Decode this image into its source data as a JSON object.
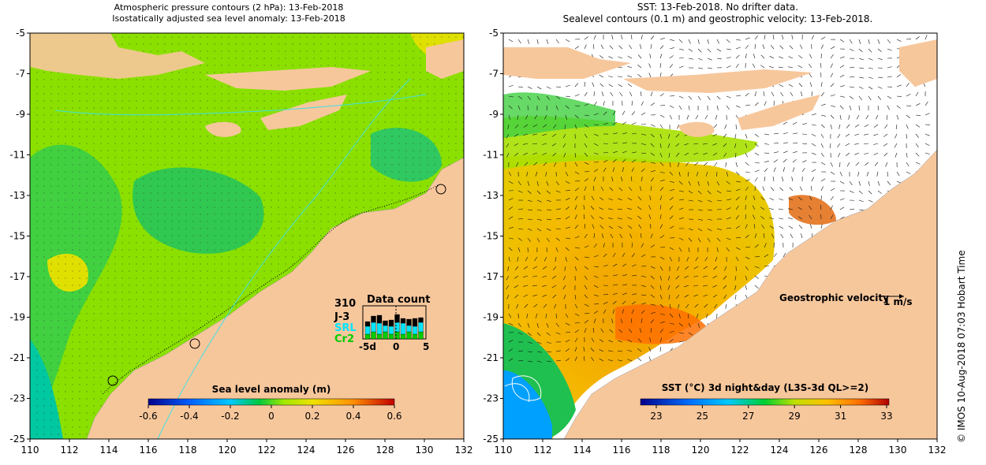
{
  "left_panel": {
    "title_line1": "Atmospheric pressure contours (2 hPa): 13-Feb-2018",
    "title_line2": "Isostatically adjusted sea level anomaly: 13-Feb-2018",
    "colorbar_label": "Sea level anomaly (m)",
    "colorbar_ticks": [
      "-0.6",
      "-0.4",
      "-0.2",
      "0",
      "0.2",
      "0.4",
      "0.6"
    ],
    "data_count": {
      "title": "Data count",
      "total": "310",
      "missions": [
        "J-3",
        "SRL",
        "Cr2"
      ],
      "mission_colors": [
        "#000000",
        "#00e5ff",
        "#00cc00"
      ],
      "axis_labels": [
        "-5d",
        "0",
        "5"
      ]
    }
  },
  "right_panel": {
    "title_line1": "SST: 13-Feb-2018. No drifter data.",
    "title_line2": "Sealevel contours (0.1 m) and geostrophic velocity: 13-Feb-2018.",
    "colorbar_label": "SST (°C) 3d night&day (L3S-3d QL>=2)",
    "colorbar_ticks": [
      "23",
      "25",
      "27",
      "29",
      "31",
      "33"
    ],
    "velocity_label": "Geostrophic velocity",
    "velocity_scale": "1 m/s"
  },
  "x_ticks": [
    "110",
    "112",
    "114",
    "116",
    "118",
    "120",
    "122",
    "124",
    "126",
    "128",
    "130",
    "132"
  ],
  "y_ticks": [
    "-5",
    "-7",
    "-9",
    "-11",
    "-13",
    "-15",
    "-17",
    "-19",
    "-21",
    "-23",
    "-25"
  ],
  "credit": "©  IMOS 10-Aug-2018 07:03 Hobart Time",
  "colors": {
    "land": "#f7c79c",
    "sla_colormap": [
      "#00008b",
      "#0060ff",
      "#00c8ff",
      "#00d860",
      "#80e800",
      "#f0e000",
      "#ff9000",
      "#c00000"
    ],
    "sst_colormap": [
      "#00008b",
      "#0070ff",
      "#00c8ff",
      "#00d030",
      "#a0e000",
      "#ffc000",
      "#ff7000",
      "#b00000"
    ]
  }
}
